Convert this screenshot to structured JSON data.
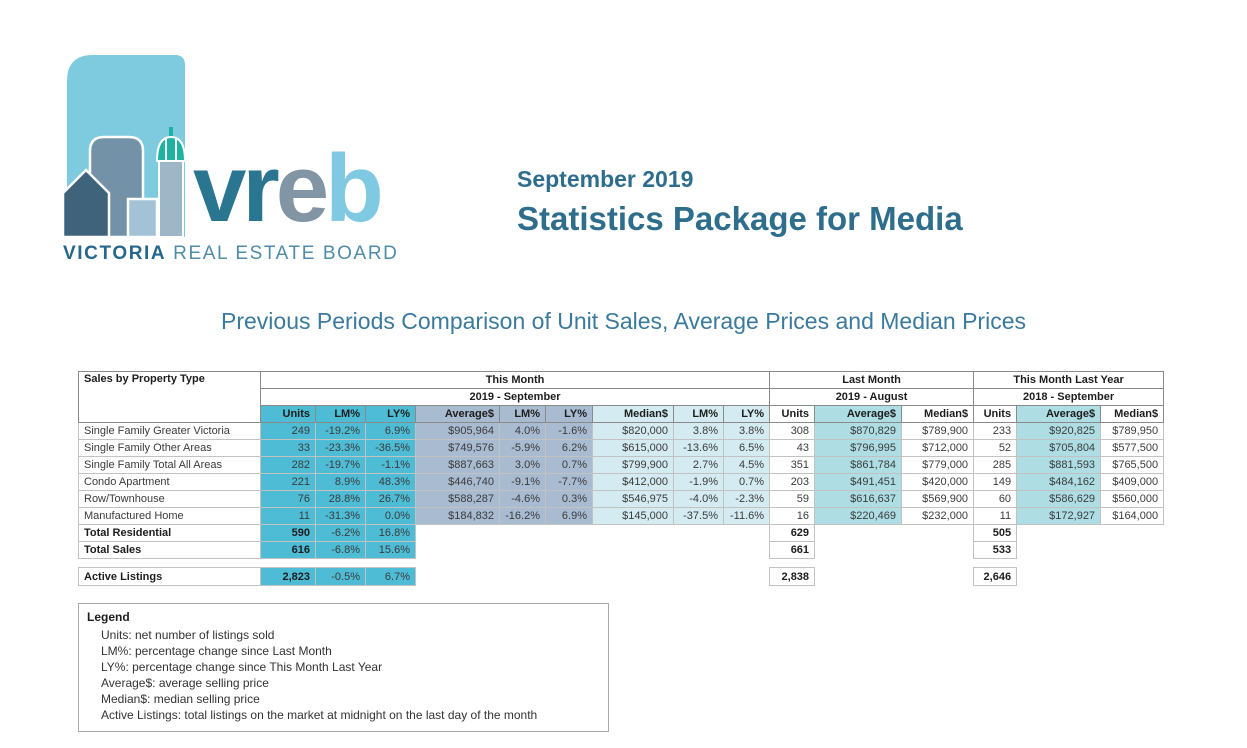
{
  "header": {
    "date_line": "September 2019",
    "title": "Statistics Package for Media"
  },
  "logo": {
    "wordmark_letters": [
      {
        "text": "vr",
        "color": "#2A7590"
      },
      {
        "text": "e",
        "color": "#8295A4"
      },
      {
        "text": "b",
        "color": "#7FC9E3"
      }
    ],
    "org_name_bold": "VICTORIA",
    "org_name_rest": " REAL ESTATE BOARD"
  },
  "subtitle": "Previous Periods Comparison of Unit Sales, Average Prices and Median Prices",
  "table": {
    "corner_label": "Sales by Property Type",
    "column_groups": [
      {
        "label": "This Month",
        "sublabel": "2019 - September",
        "span": 9
      },
      {
        "label": "Last Month",
        "sublabel": "2019 - August",
        "span": 3
      },
      {
        "label": "This Month Last Year",
        "sublabel": "2018 - September",
        "span": 3
      }
    ],
    "columns": [
      "Units",
      "LM%",
      "LY%",
      "Average$",
      "LM%",
      "LY%",
      "Median$",
      "LM%",
      "LY%",
      "Units",
      "Average$",
      "Median$",
      "Units",
      "Average$",
      "Median$"
    ],
    "rows": [
      {
        "label": "Single Family Greater Victoria",
        "cells": [
          "249",
          "-19.2%",
          "6.9%",
          "$905,964",
          "4.0%",
          "-1.6%",
          "$820,000",
          "3.8%",
          "3.8%",
          "308",
          "$870,829",
          "$789,900",
          "233",
          "$920,825",
          "$789,950"
        ]
      },
      {
        "label": "Single Family Other Areas",
        "cells": [
          "33",
          "-23.3%",
          "-36.5%",
          "$749,576",
          "-5.9%",
          "6.2%",
          "$615,000",
          "-13.6%",
          "6.5%",
          "43",
          "$796,995",
          "$712,000",
          "52",
          "$705,804",
          "$577,500"
        ]
      },
      {
        "label": "Single Family Total All Areas",
        "cells": [
          "282",
          "-19.7%",
          "-1.1%",
          "$887,663",
          "3.0%",
          "0.7%",
          "$799,900",
          "2.7%",
          "4.5%",
          "351",
          "$861,784",
          "$779,000",
          "285",
          "$881,593",
          "$765,500"
        ]
      },
      {
        "label": "Condo Apartment",
        "cells": [
          "221",
          "8.9%",
          "48.3%",
          "$446,740",
          "-9.1%",
          "-7.7%",
          "$412,000",
          "-1.9%",
          "0.7%",
          "203",
          "$491,451",
          "$420,000",
          "149",
          "$484,162",
          "$409,000"
        ]
      },
      {
        "label": "Row/Townhouse",
        "cells": [
          "76",
          "28.8%",
          "26.7%",
          "$588,287",
          "-4.6%",
          "0.3%",
          "$546,975",
          "-4.0%",
          "-2.3%",
          "59",
          "$616,637",
          "$569,900",
          "60",
          "$586,629",
          "$560,000"
        ]
      },
      {
        "label": "Manufactured Home",
        "cells": [
          "11",
          "-31.3%",
          "0.0%",
          "$184,832",
          "-16.2%",
          "6.9%",
          "$145,000",
          "-37.5%",
          "-11.6%",
          "16",
          "$220,469",
          "$232,000",
          "11",
          "$172,927",
          "$164,000"
        ]
      }
    ],
    "summary_rows": [
      {
        "label": "Total Residential",
        "units": "590",
        "lm_pct": "-6.2%",
        "ly_pct": "16.8%",
        "last_month_units": "629",
        "last_year_units": "505"
      },
      {
        "label": "Total Sales",
        "units": "616",
        "lm_pct": "-6.8%",
        "ly_pct": "15.6%",
        "last_month_units": "661",
        "last_year_units": "533"
      },
      {
        "label": "Active Listings",
        "units": "2,823",
        "lm_pct": "-0.5%",
        "ly_pct": "6.7%",
        "last_month_units": "2,838",
        "last_year_units": "2,646"
      }
    ]
  },
  "legend": {
    "title": "Legend",
    "lines": [
      "Units: net number of listings sold",
      "LM%: percentage change since Last Month",
      "LY%: percentage change since This Month Last Year",
      "Average$: average selling price",
      "Median$: median selling price",
      "Active Listings: total listings on the market at midnight on the last day of the month"
    ]
  },
  "colors": {
    "cyan": "#4EBCD5",
    "blue_gray": "#A9BBD1",
    "pale_cyan": "#D3EBF1",
    "light_teal": "#AEDEE4",
    "title_teal": "#2F6D8C"
  }
}
